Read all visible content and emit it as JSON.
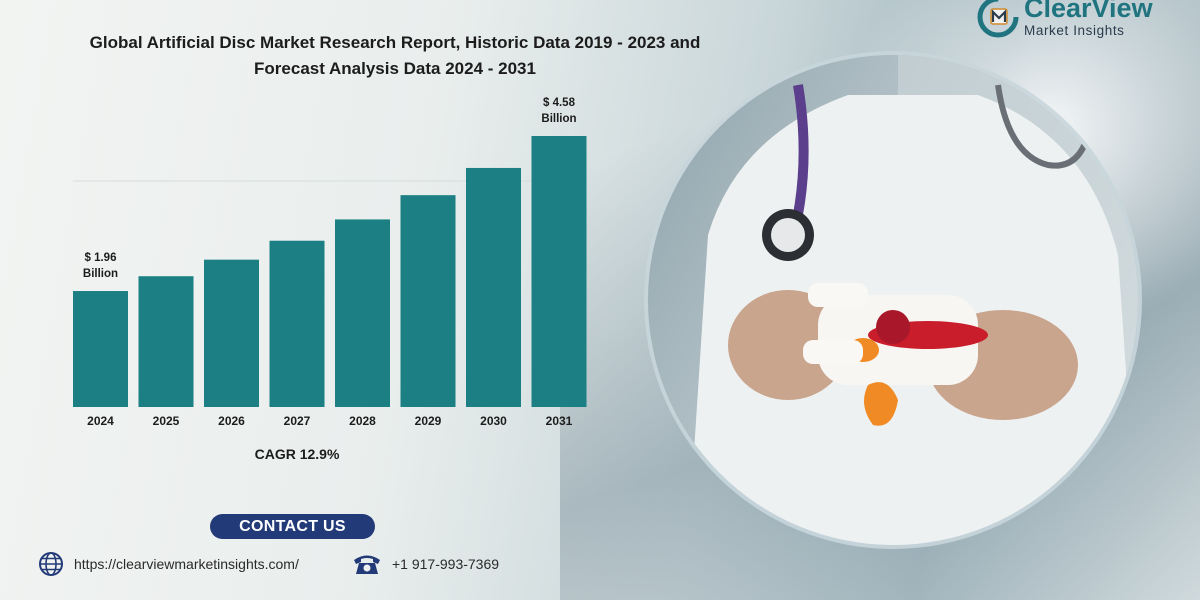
{
  "header": {
    "title_line1": "Global Artificial Disc Market Research Report, Historic Data 2019 - 2023 and",
    "title_line2": "Forecast Analysis Data 2024 - 2031"
  },
  "brand": {
    "name": "ClearView",
    "subtitle": "Market Insights",
    "color": "#1f7480"
  },
  "chart_data": {
    "type": "bar",
    "title": "Global Artificial Disc Market Research Report, Historic Data 2019 - 2023 and Forecast Analysis Data 2024 - 2031",
    "categories": [
      "2024",
      "2025",
      "2026",
      "2027",
      "2028",
      "2029",
      "2030",
      "2031"
    ],
    "values": [
      1.96,
      2.21,
      2.49,
      2.81,
      3.17,
      3.58,
      4.04,
      4.58
    ],
    "unit": "Billion",
    "data_labels": [
      {
        "category": "2024",
        "line1": "$ 1.96",
        "line2": "Billion"
      },
      {
        "category": "2031",
        "line1": "$ 4.58",
        "line2": "Billion"
      }
    ],
    "ylim": [
      0,
      4.58
    ],
    "xlabel": "",
    "ylabel": "",
    "bar_color": "#1b7f83",
    "grid": false,
    "cagr_label": "CAGR 12.9%"
  },
  "contact": {
    "button_label": "CONTACT US",
    "website": "https://clearviewmarketinsights.com/",
    "phone": "+1 917-993-7369",
    "globe_icon": "globe-icon",
    "phone_icon": "phone-icon",
    "button_color": "#233a78"
  }
}
